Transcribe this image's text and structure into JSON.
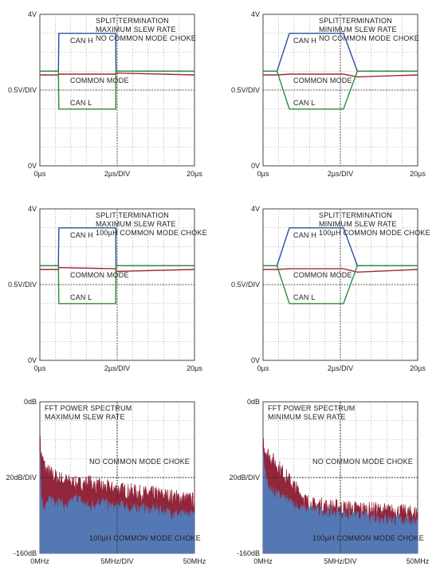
{
  "chart_data": [
    {
      "type": "line",
      "title_lines": [
        "SPLIT TERMINATION",
        "MAXIMUM SLEW RATE",
        "NO COMMON MODE CHOKE"
      ],
      "y_top": "4V",
      "y_mid": "0.5V/DIV",
      "y_bottom": "0V",
      "x_left": "0µs",
      "x_mid": "2µs/DIV",
      "x_right": "20µs",
      "xlim": [
        0,
        20
      ],
      "ylim": [
        0,
        4
      ],
      "grid": true,
      "series": [
        {
          "name": "CAN H",
          "color": "#2a4f9e",
          "x": [
            0,
            2.4,
            2.45,
            9.8,
            9.85,
            20
          ],
          "y": [
            2.5,
            2.5,
            3.5,
            3.5,
            2.5,
            2.5
          ]
        },
        {
          "name": "COMMON MODE",
          "color": "#9b2a33",
          "x": [
            0,
            2.4,
            2.45,
            9.8,
            9.85,
            20
          ],
          "y": [
            2.4,
            2.4,
            2.42,
            2.42,
            2.45,
            2.4
          ]
        },
        {
          "name": "CAN L",
          "color": "#2e8b3e",
          "x": [
            0,
            2.4,
            2.45,
            9.8,
            9.85,
            20
          ],
          "y": [
            2.5,
            2.5,
            1.5,
            1.5,
            2.5,
            2.5
          ]
        }
      ]
    },
    {
      "type": "line",
      "title_lines": [
        "SPLIT TERMINATION",
        "MINIMUM SLEW RATE",
        "NO COMMON MODE CHOKE"
      ],
      "y_top": "4V",
      "y_mid": "0.5V/DIV",
      "y_bottom": "0V",
      "x_left": "0µs",
      "x_mid": "2µs/DIV",
      "x_right": "20µs",
      "xlim": [
        0,
        20
      ],
      "ylim": [
        0,
        4
      ],
      "grid": true,
      "series": [
        {
          "name": "CAN H",
          "color": "#2a4f9e",
          "x": [
            0,
            1.8,
            3.4,
            10.4,
            12.2,
            20
          ],
          "y": [
            2.5,
            2.5,
            3.5,
            3.5,
            2.5,
            2.5
          ]
        },
        {
          "name": "COMMON MODE",
          "color": "#9b2a33",
          "x": [
            0,
            1.8,
            3.4,
            10.4,
            12.2,
            20
          ],
          "y": [
            2.4,
            2.4,
            2.42,
            2.42,
            2.35,
            2.4
          ]
        },
        {
          "name": "CAN L",
          "color": "#2e8b3e",
          "x": [
            0,
            1.8,
            3.4,
            10.4,
            12.2,
            20
          ],
          "y": [
            2.5,
            2.5,
            1.5,
            1.5,
            2.5,
            2.5
          ]
        }
      ]
    },
    {
      "type": "line",
      "title_lines": [
        "SPLIT TERMINATION",
        "MAXIMUM SLEW RATE",
        "100µH COMMON MODE CHOKE"
      ],
      "y_top": "4V",
      "y_mid": "0.5V/DIV",
      "y_bottom": "0V",
      "x_left": "0µs",
      "x_mid": "2µs/DIV",
      "x_right": "20µs",
      "xlim": [
        0,
        20
      ],
      "ylim": [
        0,
        4
      ],
      "grid": true,
      "series": [
        {
          "name": "CAN H",
          "color": "#2a4f9e",
          "x": [
            0,
            2.4,
            2.45,
            9.8,
            9.85,
            20
          ],
          "y": [
            2.5,
            2.5,
            3.5,
            3.5,
            2.5,
            2.5
          ]
        },
        {
          "name": "COMMON MODE",
          "color": "#9b2a33",
          "x": [
            0,
            2.4,
            2.45,
            9.8,
            9.85,
            20
          ],
          "y": [
            2.4,
            2.4,
            2.45,
            2.42,
            2.35,
            2.4
          ]
        },
        {
          "name": "CAN L",
          "color": "#2e8b3e",
          "x": [
            0,
            2.4,
            2.45,
            9.8,
            9.85,
            20
          ],
          "y": [
            2.5,
            2.5,
            1.5,
            1.5,
            2.5,
            2.5
          ]
        }
      ]
    },
    {
      "type": "line",
      "title_lines": [
        "SPLIT TERMINATION",
        "MINIMUM SLEW RATE",
        "100µH COMMON MODE CHOKE"
      ],
      "y_top": "4V",
      "y_mid": "0.5V/DIV",
      "y_bottom": "0V",
      "x_left": "0µs",
      "x_mid": "2µs/DIV",
      "x_right": "20µs",
      "xlim": [
        0,
        20
      ],
      "ylim": [
        0,
        4
      ],
      "grid": true,
      "series": [
        {
          "name": "CAN H",
          "color": "#2a4f9e",
          "x": [
            0,
            1.8,
            3.4,
            10.4,
            12.2,
            20
          ],
          "y": [
            2.5,
            2.5,
            3.5,
            3.5,
            2.5,
            2.5
          ]
        },
        {
          "name": "COMMON MODE",
          "color": "#9b2a33",
          "x": [
            0,
            1.8,
            3.4,
            10.4,
            12.2,
            20
          ],
          "y": [
            2.4,
            2.4,
            2.42,
            2.42,
            2.33,
            2.4
          ]
        },
        {
          "name": "CAN L",
          "color": "#2e8b3e",
          "x": [
            0,
            1.8,
            3.4,
            10.4,
            12.2,
            20
          ],
          "y": [
            2.5,
            2.5,
            1.5,
            1.5,
            2.5,
            2.5
          ]
        }
      ]
    },
    {
      "type": "area",
      "title_lines": [
        "FFT POWER SPECTRUM",
        "MAXIMUM SLEW RATE"
      ],
      "y_top": "0dB",
      "y_mid": "20dB/DIV",
      "y_bottom": "-160dB",
      "x_left": "0MHz",
      "x_mid": "5MHz/DIV",
      "x_right": "50MHz",
      "xlim": [
        0,
        50
      ],
      "ylim": [
        -160,
        0
      ],
      "grid": true,
      "series": [
        {
          "name": "NO COMMON MODE CHOKE",
          "color": "#8c1a30",
          "x": [
            0,
            0.5,
            2,
            4,
            6,
            8,
            10,
            12,
            14,
            16,
            18,
            20,
            22,
            24,
            26,
            28,
            30,
            32,
            34,
            36,
            38,
            40,
            42,
            44,
            46,
            48,
            50
          ],
          "y": [
            -42,
            -60,
            -75,
            -80,
            -84,
            -86,
            -88,
            -90,
            -90,
            -88,
            -92,
            -93,
            -94,
            -95,
            -96,
            -97,
            -98,
            -99,
            -100,
            -100,
            -101,
            -102,
            -103,
            -104,
            -105,
            -106,
            -107
          ]
        },
        {
          "name": "100µH COMMON MODE CHOKE",
          "color": "#4f7fbf",
          "x": [
            0,
            0.5,
            1,
            2,
            3,
            4,
            6,
            8,
            10,
            12,
            14,
            16,
            18,
            20,
            22,
            24,
            26,
            28,
            30,
            32,
            34,
            36,
            38,
            40,
            42,
            44,
            46,
            48,
            50
          ],
          "y": [
            -60,
            -100,
            -112,
            -112,
            -108,
            -105,
            -108,
            -115,
            -110,
            -104,
            -110,
            -114,
            -110,
            -108,
            -112,
            -115,
            -112,
            -114,
            -117,
            -115,
            -116,
            -118,
            -117,
            -119,
            -120,
            -121,
            -123,
            -122,
            -124
          ]
        }
      ]
    },
    {
      "type": "area",
      "title_lines": [
        "FFT POWER SPECTRUM",
        "MINIMUM SLEW RATE"
      ],
      "y_top": "0dB",
      "y_mid": "20dB/DIV",
      "y_bottom": "-160dB",
      "x_left": "0MHz",
      "x_mid": "5MHz/DIV",
      "x_right": "50MHz",
      "xlim": [
        0,
        50
      ],
      "ylim": [
        -160,
        0
      ],
      "grid": true,
      "series": [
        {
          "name": "NO COMMON MODE CHOKE",
          "color": "#8c1a30",
          "x": [
            0,
            0.5,
            2,
            4,
            6,
            8,
            10,
            12,
            14,
            16,
            18,
            20,
            22,
            24,
            26,
            28,
            30,
            32,
            34,
            36,
            38,
            40,
            42,
            44,
            46,
            48,
            50
          ],
          "y": [
            -42,
            -52,
            -60,
            -68,
            -76,
            -84,
            -92,
            -100,
            -108,
            -112,
            -112,
            -113,
            -114,
            -114,
            -115,
            -115,
            -116,
            -116,
            -117,
            -117,
            -118,
            -118,
            -119,
            -119,
            -120,
            -120,
            -121
          ]
        },
        {
          "name": "100µH COMMON MODE CHOKE",
          "color": "#4f7fbf",
          "x": [
            0,
            0.5,
            1,
            2,
            4,
            6,
            8,
            10,
            12,
            14,
            16,
            18,
            20,
            22,
            24,
            26,
            28,
            30,
            32,
            34,
            36,
            38,
            40,
            42,
            44,
            46,
            48,
            50
          ],
          "y": [
            -55,
            -70,
            -85,
            -95,
            -100,
            -104,
            -108,
            -112,
            -116,
            -118,
            -117,
            -118,
            -120,
            -121,
            -121,
            -122,
            -123,
            -124,
            -124,
            -125,
            -125,
            -126,
            -127,
            -127,
            -128,
            -128,
            -129,
            -130
          ]
        }
      ]
    }
  ],
  "annotations": {
    "can_h": "CAN H",
    "common_mode": "COMMON MODE",
    "can_l": "CAN L",
    "no_choke": "NO COMMON MODE CHOKE",
    "with_choke": "100µH COMMON MODE CHOKE"
  }
}
